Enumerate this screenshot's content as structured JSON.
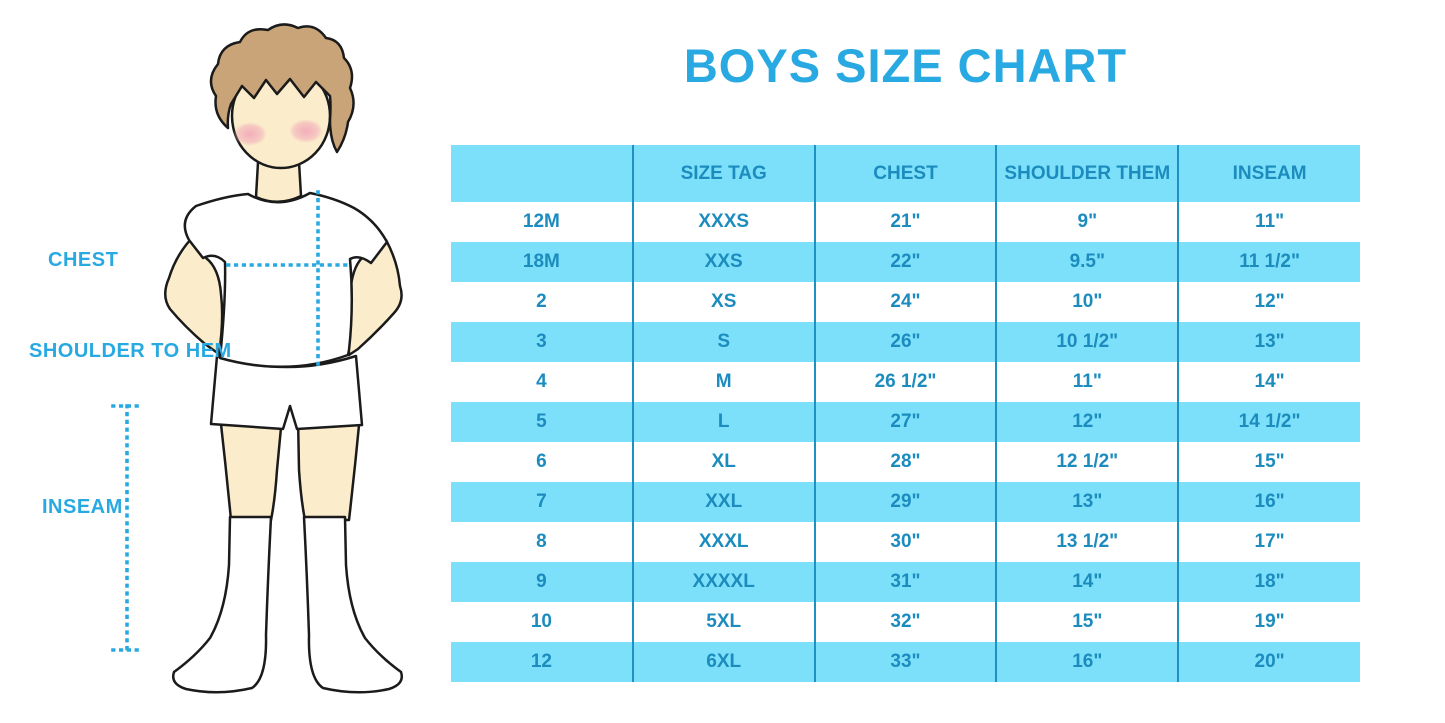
{
  "title": "BOYS SIZE CHART",
  "theme": {
    "accent": "#29a9e1",
    "table-text": "#1c8cbe",
    "row-blue": "#7ce0fa",
    "divider": "#1f90c2",
    "skin": "#fbedcb",
    "hair": "#c9a478",
    "blush": "#f2abba",
    "outline": "#1b1b1b"
  },
  "figure": {
    "labels": {
      "chest": "CHEST",
      "shoulder_to_hem": "SHOULDER TO HEM",
      "inseam": "INSEAM"
    }
  },
  "chart_data": {
    "type": "table",
    "title": "BOYS SIZE CHART",
    "columns": [
      "",
      "SIZE TAG",
      "CHEST",
      "SHOULDER THEM",
      "INSEAM"
    ],
    "rows": [
      [
        "12M",
        "XXXS",
        "21\"",
        "9\"",
        "11\""
      ],
      [
        "18M",
        "XXS",
        "22\"",
        "9.5\"",
        "11 1/2\""
      ],
      [
        "2",
        "XS",
        "24\"",
        "10\"",
        "12\""
      ],
      [
        "3",
        "S",
        "26\"",
        "10 1/2\"",
        "13\""
      ],
      [
        "4",
        "M",
        "26 1/2\"",
        "11\"",
        "14\""
      ],
      [
        "5",
        "L",
        "27\"",
        "12\"",
        "14 1/2\""
      ],
      [
        "6",
        "XL",
        "28\"",
        "12 1/2\"",
        "15\""
      ],
      [
        "7",
        "XXL",
        "29\"",
        "13\"",
        "16\""
      ],
      [
        "8",
        "XXXL",
        "30\"",
        "13 1/2\"",
        "17\""
      ],
      [
        "9",
        "XXXXL",
        "31\"",
        "14\"",
        "18\""
      ],
      [
        "10",
        "5XL",
        "32\"",
        "15\"",
        "19\""
      ],
      [
        "12",
        "6XL",
        "33\"",
        "16\"",
        "20\""
      ]
    ],
    "layout": {
      "striping": "header and alternate rows light blue, others white",
      "grid": "vertical column dividers only"
    }
  }
}
